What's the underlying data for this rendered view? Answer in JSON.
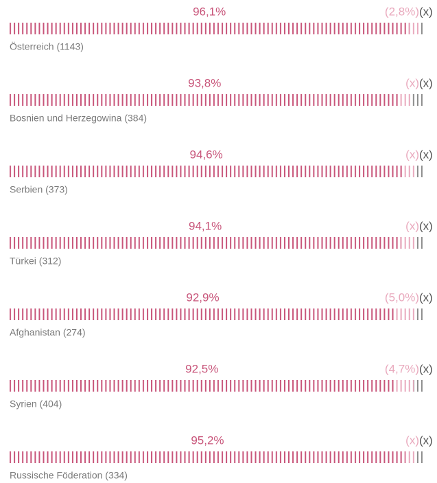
{
  "chart_data": {
    "type": "bar",
    "stacked": true,
    "orientation": "horizontal",
    "xlim": [
      0,
      100
    ],
    "categories": [
      "Österreich (1143)",
      "Bosnien und Herzegowina (384)",
      "Serbien (373)",
      "Türkei (312)",
      "Afghanistan (274)",
      "Syrien (404)",
      "Russische Föderation (334)"
    ],
    "series": [
      {
        "color": "#c8557a",
        "values": [
          96.1,
          93.8,
          94.6,
          94.1,
          92.9,
          92.5,
          95.2
        ],
        "value_labels": [
          "96,1%",
          "93,8%",
          "94,6%",
          "94,1%",
          "92,9%",
          "92,5%",
          "95,2%"
        ]
      },
      {
        "color": "#e9a9bd",
        "values": [
          2.8,
          3.0,
          3.0,
          3.5,
          5.0,
          4.7,
          2.5
        ],
        "value_labels": [
          "(2,8%)",
          "(x)",
          "(x)",
          "(x)",
          "(5,0%)",
          "(4,7%)",
          "(x)"
        ]
      },
      {
        "color": "#8c8c8c",
        "values": [
          1.1,
          3.2,
          2.4,
          2.4,
          2.1,
          2.8,
          2.3
        ],
        "value_labels": [
          "(x)",
          "(x)",
          "(x)",
          "(x)",
          "(x)",
          "(x)",
          "(x)"
        ]
      }
    ]
  }
}
